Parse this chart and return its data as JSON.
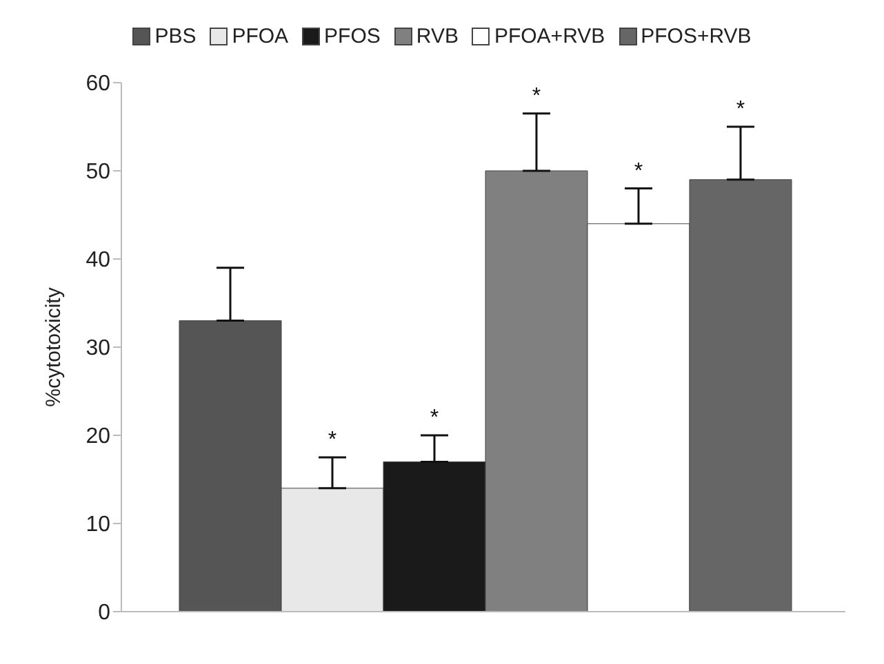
{
  "chart_data": {
    "type": "bar",
    "ylabel": "%cytotoxicity",
    "categories": [
      null
    ],
    "series": [
      {
        "name": "PBS",
        "color": "#555555",
        "values": [
          33
        ],
        "errors": [
          [
            33,
            39
          ]
        ],
        "value_labels": [
          null
        ]
      },
      {
        "name": "PFOA",
        "color": "#e8e8e8",
        "values": [
          14
        ],
        "errors": [
          [
            14,
            17.5
          ]
        ],
        "value_labels": [
          "*"
        ]
      },
      {
        "name": "PFOS",
        "color": "#1a1a1a",
        "values": [
          17
        ],
        "errors": [
          [
            17,
            20
          ]
        ],
        "value_labels": [
          "*"
        ]
      },
      {
        "name": "RVB",
        "color": "#808080",
        "values": [
          50
        ],
        "errors": [
          [
            50,
            56.5
          ]
        ],
        "value_labels": [
          "*"
        ]
      },
      {
        "name": "PFOA+RVB",
        "color": "#ffffff",
        "values": [
          44
        ],
        "errors": [
          [
            44,
            48
          ]
        ],
        "value_labels": [
          "*"
        ]
      },
      {
        "name": "PFOS+RVB",
        "color": "#666666",
        "values": [
          49
        ],
        "errors": [
          [
            49,
            55
          ]
        ],
        "value_labels": [
          "*"
        ]
      }
    ],
    "ylim": [
      0,
      60
    ],
    "yticks": [
      0,
      10,
      20,
      30,
      40,
      50,
      60
    ],
    "grid": false,
    "legend": "top"
  }
}
